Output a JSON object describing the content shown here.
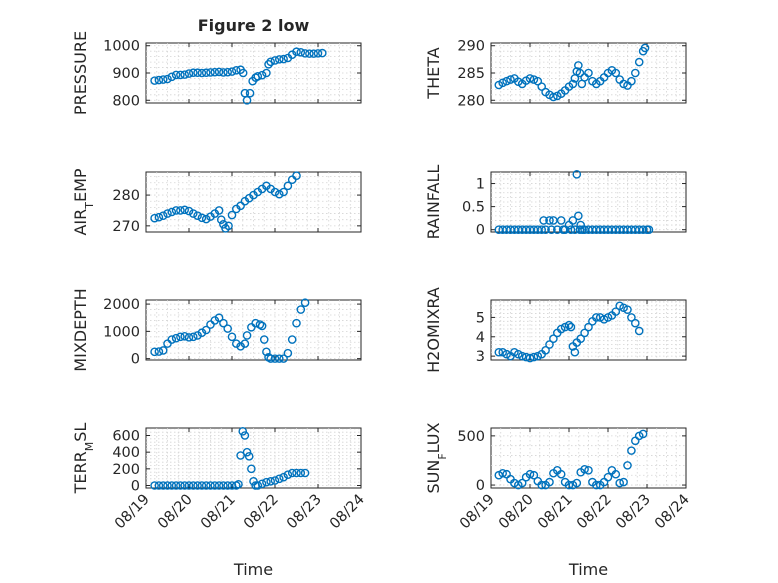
{
  "figure": {
    "title": "Figure 2 low",
    "x_tick_labels": [
      "08/19",
      "08/20",
      "08/21",
      "08/22",
      "08/23",
      "08/24"
    ],
    "xlabel": "Time",
    "marker_color": "#0072bd",
    "marker": "o"
  },
  "chart_data": [
    {
      "type": "scatter",
      "ylabel": "PRESSURE",
      "ylim": [
        790,
        1010
      ],
      "yticks": [
        800,
        900,
        1000
      ],
      "xlim": [
        0,
        5
      ],
      "grid": true,
      "points": [
        [
          0.2,
          872
        ],
        [
          0.3,
          874
        ],
        [
          0.4,
          876
        ],
        [
          0.5,
          878
        ],
        [
          0.6,
          886
        ],
        [
          0.7,
          893
        ],
        [
          0.8,
          893
        ],
        [
          0.9,
          894
        ],
        [
          1.0,
          898
        ],
        [
          1.1,
          901
        ],
        [
          1.2,
          901
        ],
        [
          1.3,
          900
        ],
        [
          1.4,
          901
        ],
        [
          1.5,
          902
        ],
        [
          1.6,
          903
        ],
        [
          1.7,
          904
        ],
        [
          1.8,
          902
        ],
        [
          1.9,
          903
        ],
        [
          2.0,
          905
        ],
        [
          2.1,
          910
        ],
        [
          2.2,
          912
        ],
        [
          2.26,
          900
        ],
        [
          2.3,
          826
        ],
        [
          2.35,
          800
        ],
        [
          2.42,
          826
        ],
        [
          2.48,
          870
        ],
        [
          2.55,
          883
        ],
        [
          2.6,
          888
        ],
        [
          2.7,
          892
        ],
        [
          2.8,
          900
        ],
        [
          2.85,
          932
        ],
        [
          2.9,
          941
        ],
        [
          3.0,
          946
        ],
        [
          3.1,
          950
        ],
        [
          3.2,
          951
        ],
        [
          3.3,
          955
        ],
        [
          3.4,
          967
        ],
        [
          3.5,
          978
        ],
        [
          3.6,
          976
        ],
        [
          3.7,
          972
        ],
        [
          3.8,
          971
        ],
        [
          3.9,
          971
        ],
        [
          4.0,
          972
        ],
        [
          4.1,
          973
        ]
      ]
    },
    {
      "type": "scatter",
      "ylabel": "THETA",
      "ylim": [
        279.5,
        290.5
      ],
      "yticks": [
        280,
        285,
        290
      ],
      "xlim": [
        0,
        5
      ],
      "grid": true,
      "points": [
        [
          0.2,
          282.8
        ],
        [
          0.3,
          283.2
        ],
        [
          0.4,
          283.5
        ],
        [
          0.5,
          283.8
        ],
        [
          0.6,
          284.0
        ],
        [
          0.7,
          283.4
        ],
        [
          0.8,
          283.0
        ],
        [
          0.9,
          283.6
        ],
        [
          1.0,
          284.0
        ],
        [
          1.1,
          283.8
        ],
        [
          1.2,
          283.5
        ],
        [
          1.3,
          282.5
        ],
        [
          1.4,
          281.5
        ],
        [
          1.5,
          281.0
        ],
        [
          1.6,
          280.6
        ],
        [
          1.7,
          280.8
        ],
        [
          1.8,
          281.2
        ],
        [
          1.9,
          281.8
        ],
        [
          2.0,
          282.5
        ],
        [
          2.1,
          283.0
        ],
        [
          2.15,
          284.0
        ],
        [
          2.2,
          285.3
        ],
        [
          2.24,
          286.4
        ],
        [
          2.28,
          285.0
        ],
        [
          2.33,
          283.0
        ],
        [
          2.4,
          284.2
        ],
        [
          2.5,
          285.0
        ],
        [
          2.6,
          283.5
        ],
        [
          2.7,
          283.0
        ],
        [
          2.8,
          283.5
        ],
        [
          2.9,
          284.2
        ],
        [
          3.0,
          285.0
        ],
        [
          3.1,
          285.5
        ],
        [
          3.2,
          285.0
        ],
        [
          3.3,
          283.8
        ],
        [
          3.4,
          283.0
        ],
        [
          3.5,
          282.7
        ],
        [
          3.6,
          283.5
        ],
        [
          3.7,
          285.0
        ],
        [
          3.8,
          287.0
        ],
        [
          3.9,
          289.0
        ],
        [
          3.95,
          289.6
        ]
      ]
    },
    {
      "type": "scatter",
      "ylabel": "AIR_TEMP",
      "ylim": [
        268,
        287.5
      ],
      "yticks": [
        270,
        280
      ],
      "xlim": [
        0,
        5
      ],
      "grid": true,
      "points": [
        [
          0.2,
          272.5
        ],
        [
          0.3,
          272.8
        ],
        [
          0.4,
          273.3
        ],
        [
          0.5,
          274.0
        ],
        [
          0.6,
          274.5
        ],
        [
          0.7,
          275.0
        ],
        [
          0.8,
          275.0
        ],
        [
          0.9,
          275.2
        ],
        [
          1.0,
          274.8
        ],
        [
          1.1,
          274.0
        ],
        [
          1.2,
          273.3
        ],
        [
          1.3,
          272.6
        ],
        [
          1.4,
          272.2
        ],
        [
          1.5,
          273.0
        ],
        [
          1.6,
          274.0
        ],
        [
          1.7,
          275.0
        ],
        [
          1.75,
          272.0
        ],
        [
          1.8,
          270.5
        ],
        [
          1.85,
          269.2
        ],
        [
          1.92,
          270.0
        ],
        [
          2.0,
          273.5
        ],
        [
          2.1,
          275.5
        ],
        [
          2.2,
          276.5
        ],
        [
          2.3,
          278.0
        ],
        [
          2.4,
          279.0
        ],
        [
          2.5,
          280.0
        ],
        [
          2.6,
          281.0
        ],
        [
          2.7,
          282.0
        ],
        [
          2.8,
          283.0
        ],
        [
          2.9,
          282.0
        ],
        [
          3.0,
          281.0
        ],
        [
          3.1,
          280.3
        ],
        [
          3.2,
          281.0
        ],
        [
          3.3,
          283.0
        ],
        [
          3.4,
          285.0
        ],
        [
          3.5,
          286.3
        ]
      ]
    },
    {
      "type": "scatter",
      "ylabel": "RAINFALL",
      "ylim": [
        -0.05,
        1.25
      ],
      "yticks": [
        0,
        0.5,
        1
      ],
      "ytick_labels": [
        "0",
        "0.5",
        "1"
      ],
      "xlim": [
        0,
        5
      ],
      "grid": true,
      "points": [
        [
          0.2,
          0
        ],
        [
          0.3,
          0
        ],
        [
          0.4,
          0
        ],
        [
          0.5,
          0
        ],
        [
          0.6,
          0
        ],
        [
          0.7,
          0
        ],
        [
          0.8,
          0
        ],
        [
          0.9,
          0
        ],
        [
          1.0,
          0
        ],
        [
          1.1,
          0
        ],
        [
          1.2,
          0
        ],
        [
          1.3,
          0
        ],
        [
          1.35,
          0.2
        ],
        [
          1.4,
          0
        ],
        [
          1.5,
          0.2
        ],
        [
          1.55,
          0
        ],
        [
          1.6,
          0.2
        ],
        [
          1.7,
          0
        ],
        [
          1.8,
          0.2
        ],
        [
          1.85,
          0
        ],
        [
          1.9,
          0
        ],
        [
          2.0,
          0.1
        ],
        [
          2.05,
          0
        ],
        [
          2.1,
          0.2
        ],
        [
          2.15,
          0
        ],
        [
          2.2,
          1.2
        ],
        [
          2.24,
          0.3
        ],
        [
          2.28,
          0
        ],
        [
          2.3,
          0.1
        ],
        [
          2.35,
          0
        ],
        [
          2.4,
          0
        ],
        [
          2.5,
          0
        ],
        [
          2.6,
          0
        ],
        [
          2.7,
          0
        ],
        [
          2.8,
          0
        ],
        [
          2.9,
          0
        ],
        [
          3.0,
          0
        ],
        [
          3.1,
          0
        ],
        [
          3.2,
          0
        ],
        [
          3.3,
          0
        ],
        [
          3.4,
          0
        ],
        [
          3.5,
          0
        ],
        [
          3.6,
          0
        ],
        [
          3.7,
          0
        ],
        [
          3.8,
          0
        ],
        [
          3.9,
          0
        ],
        [
          4.0,
          0
        ],
        [
          4.05,
          0
        ]
      ]
    },
    {
      "type": "scatter",
      "ylabel": "MIXDEPTH",
      "ylim": [
        -50,
        2150
      ],
      "yticks": [
        0,
        1000,
        2000
      ],
      "xlim": [
        0,
        5
      ],
      "grid": true,
      "points": [
        [
          0.2,
          250
        ],
        [
          0.3,
          260
        ],
        [
          0.4,
          300
        ],
        [
          0.5,
          550
        ],
        [
          0.6,
          700
        ],
        [
          0.7,
          750
        ],
        [
          0.8,
          800
        ],
        [
          0.9,
          820
        ],
        [
          1.0,
          780
        ],
        [
          1.1,
          800
        ],
        [
          1.2,
          850
        ],
        [
          1.3,
          950
        ],
        [
          1.4,
          1050
        ],
        [
          1.5,
          1250
        ],
        [
          1.6,
          1400
        ],
        [
          1.7,
          1500
        ],
        [
          1.8,
          1300
        ],
        [
          1.9,
          1100
        ],
        [
          2.0,
          800
        ],
        [
          2.1,
          550
        ],
        [
          2.2,
          450
        ],
        [
          2.3,
          550
        ],
        [
          2.35,
          850
        ],
        [
          2.45,
          1150
        ],
        [
          2.55,
          1300
        ],
        [
          2.65,
          1250
        ],
        [
          2.7,
          1200
        ],
        [
          2.75,
          700
        ],
        [
          2.8,
          250
        ],
        [
          2.85,
          50
        ],
        [
          2.9,
          0
        ],
        [
          3.0,
          0
        ],
        [
          3.1,
          0
        ],
        [
          3.2,
          0
        ],
        [
          3.3,
          200
        ],
        [
          3.4,
          700
        ],
        [
          3.5,
          1300
        ],
        [
          3.6,
          1800
        ],
        [
          3.7,
          2050
        ]
      ]
    },
    {
      "type": "scatter",
      "ylabel": "H2OMIXRA",
      "ylim": [
        2.8,
        5.9
      ],
      "yticks": [
        3,
        4,
        5
      ],
      "xlim": [
        0,
        5
      ],
      "grid": true,
      "points": [
        [
          0.2,
          3.2
        ],
        [
          0.3,
          3.2
        ],
        [
          0.4,
          3.1
        ],
        [
          0.5,
          3.0
        ],
        [
          0.6,
          3.2
        ],
        [
          0.7,
          3.1
        ],
        [
          0.8,
          3.0
        ],
        [
          0.9,
          2.95
        ],
        [
          1.0,
          2.9
        ],
        [
          1.1,
          2.95
        ],
        [
          1.2,
          3.0
        ],
        [
          1.3,
          3.1
        ],
        [
          1.4,
          3.3
        ],
        [
          1.5,
          3.6
        ],
        [
          1.6,
          3.9
        ],
        [
          1.7,
          4.2
        ],
        [
          1.8,
          4.4
        ],
        [
          1.9,
          4.5
        ],
        [
          2.0,
          4.6
        ],
        [
          2.05,
          4.5
        ],
        [
          2.1,
          3.5
        ],
        [
          2.15,
          3.2
        ],
        [
          2.2,
          3.7
        ],
        [
          2.3,
          3.9
        ],
        [
          2.4,
          4.2
        ],
        [
          2.5,
          4.5
        ],
        [
          2.6,
          4.8
        ],
        [
          2.7,
          5.0
        ],
        [
          2.8,
          5.0
        ],
        [
          2.9,
          4.9
        ],
        [
          3.0,
          5.0
        ],
        [
          3.1,
          5.1
        ],
        [
          3.2,
          5.3
        ],
        [
          3.3,
          5.6
        ],
        [
          3.4,
          5.5
        ],
        [
          3.5,
          5.4
        ],
        [
          3.6,
          5.0
        ],
        [
          3.7,
          4.7
        ],
        [
          3.8,
          4.3
        ]
      ]
    },
    {
      "type": "scatter",
      "ylabel": "TERR_MSL",
      "ylim": [
        -30,
        690
      ],
      "yticks": [
        0,
        200,
        400,
        600
      ],
      "xlim": [
        0,
        5
      ],
      "grid": true,
      "points": [
        [
          0.2,
          0
        ],
        [
          0.3,
          0
        ],
        [
          0.4,
          0
        ],
        [
          0.5,
          0
        ],
        [
          0.6,
          0
        ],
        [
          0.7,
          0
        ],
        [
          0.8,
          0
        ],
        [
          0.9,
          0
        ],
        [
          1.0,
          0
        ],
        [
          1.1,
          0
        ],
        [
          1.2,
          0
        ],
        [
          1.3,
          0
        ],
        [
          1.4,
          0
        ],
        [
          1.5,
          0
        ],
        [
          1.6,
          0
        ],
        [
          1.7,
          0
        ],
        [
          1.8,
          0
        ],
        [
          1.9,
          0
        ],
        [
          2.0,
          0
        ],
        [
          2.1,
          0
        ],
        [
          2.15,
          15
        ],
        [
          2.2,
          360
        ],
        [
          2.25,
          650
        ],
        [
          2.3,
          600
        ],
        [
          2.35,
          400
        ],
        [
          2.4,
          350
        ],
        [
          2.45,
          200
        ],
        [
          2.5,
          50
        ],
        [
          2.55,
          0
        ],
        [
          2.6,
          0
        ],
        [
          2.7,
          20
        ],
        [
          2.8,
          40
        ],
        [
          2.9,
          50
        ],
        [
          3.0,
          60
        ],
        [
          3.1,
          80
        ],
        [
          3.2,
          100
        ],
        [
          3.3,
          130
        ],
        [
          3.4,
          150
        ],
        [
          3.5,
          150
        ],
        [
          3.6,
          150
        ],
        [
          3.7,
          150
        ]
      ]
    },
    {
      "type": "scatter",
      "ylabel": "SUN_FLUX",
      "ylim": [
        -30,
        580
      ],
      "yticks": [
        0,
        500
      ],
      "xlim": [
        0,
        5
      ],
      "grid": true,
      "points": [
        [
          0.2,
          100
        ],
        [
          0.3,
          120
        ],
        [
          0.4,
          110
        ],
        [
          0.5,
          60
        ],
        [
          0.6,
          20
        ],
        [
          0.7,
          0
        ],
        [
          0.8,
          20
        ],
        [
          0.9,
          80
        ],
        [
          1.0,
          110
        ],
        [
          1.1,
          100
        ],
        [
          1.2,
          40
        ],
        [
          1.3,
          0
        ],
        [
          1.4,
          0
        ],
        [
          1.5,
          30
        ],
        [
          1.6,
          120
        ],
        [
          1.7,
          150
        ],
        [
          1.8,
          110
        ],
        [
          1.9,
          30
        ],
        [
          2.0,
          0
        ],
        [
          2.1,
          0
        ],
        [
          2.2,
          20
        ],
        [
          2.3,
          130
        ],
        [
          2.4,
          160
        ],
        [
          2.5,
          150
        ],
        [
          2.6,
          30
        ],
        [
          2.7,
          0
        ],
        [
          2.8,
          0
        ],
        [
          2.9,
          30
        ],
        [
          3.0,
          80
        ],
        [
          3.1,
          150
        ],
        [
          3.2,
          110
        ],
        [
          3.3,
          20
        ],
        [
          3.4,
          30
        ],
        [
          3.5,
          200
        ],
        [
          3.6,
          350
        ],
        [
          3.7,
          450
        ],
        [
          3.8,
          500
        ],
        [
          3.9,
          520
        ]
      ]
    }
  ]
}
